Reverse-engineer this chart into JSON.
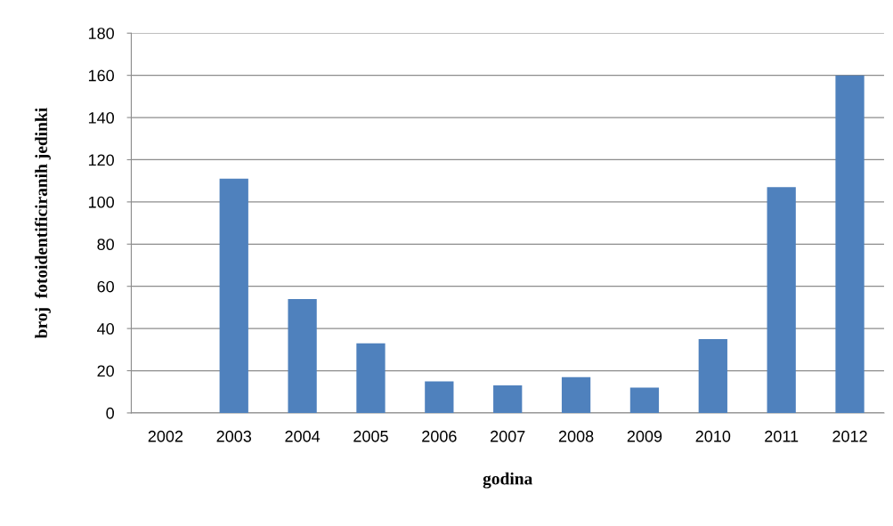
{
  "chart_data": {
    "type": "bar",
    "xlabel": "godina",
    "ylabel": "broj  fotoidentificiranih jedinki",
    "categories": [
      "2002",
      "2003",
      "2004",
      "2005",
      "2006",
      "2007",
      "2008",
      "2009",
      "2010",
      "2011",
      "2012"
    ],
    "values": [
      0,
      111,
      54,
      33,
      15,
      13,
      17,
      12,
      35,
      107,
      160
    ],
    "color": "#4f81bd",
    "ylim": [
      0,
      180
    ],
    "yticks": [
      0,
      20,
      40,
      60,
      80,
      100,
      120,
      140,
      160,
      180
    ],
    "grid": "y",
    "legend": false
  }
}
